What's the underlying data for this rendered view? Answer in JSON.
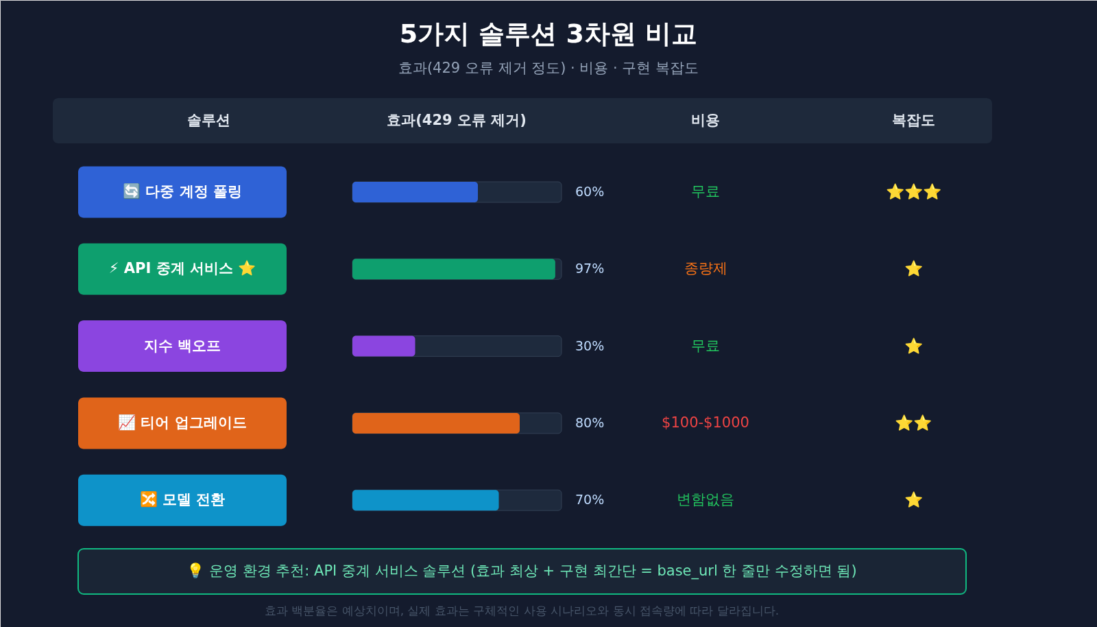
{
  "chart_data": {
    "type": "bar",
    "orientation": "horizontal",
    "title": "5가지 솔루션 3차원 비교",
    "subtitle": "효과(429 오류 제거 정도) · 비용 · 구현 복잡도",
    "categories": [
      "🔄 다중 계정 폴링",
      "⚡ API 중계 서비스 ⭐",
      "지수 백오프",
      "📈 티어 업그레이드",
      "🔀 모델 전환"
    ],
    "values": [
      60,
      97,
      30,
      80,
      70
    ],
    "colors": [
      "#2f62d6",
      "#0e9f6e",
      "#8b45e0",
      "#e0641a",
      "#0e93c9"
    ],
    "value_labels": [
      "60%",
      "97%",
      "30%",
      "80%",
      "70%"
    ],
    "xlim": [
      0,
      100
    ],
    "tick_labels": false,
    "annotations": [
      "솔루션",
      "효과(429 오류 제거)",
      "비용",
      "복잡도",
      "무료",
      "종량제",
      "무료",
      "$100-$1000",
      "변함없음",
      "⭐⭐⭐",
      "⭐",
      "⭐",
      "⭐⭐",
      "⭐",
      "💡 운영 환경 추천: API 중계 서비스 솔루션 (효과 최상 + 구현 최간단 = base_url 한 줄만 수정하면 됨)",
      "효과 백분율은 예상치이며, 실제 효과는 구체적인 사용 시나리오와 동시 접속량에 따라 달라집니다."
    ]
  }
}
